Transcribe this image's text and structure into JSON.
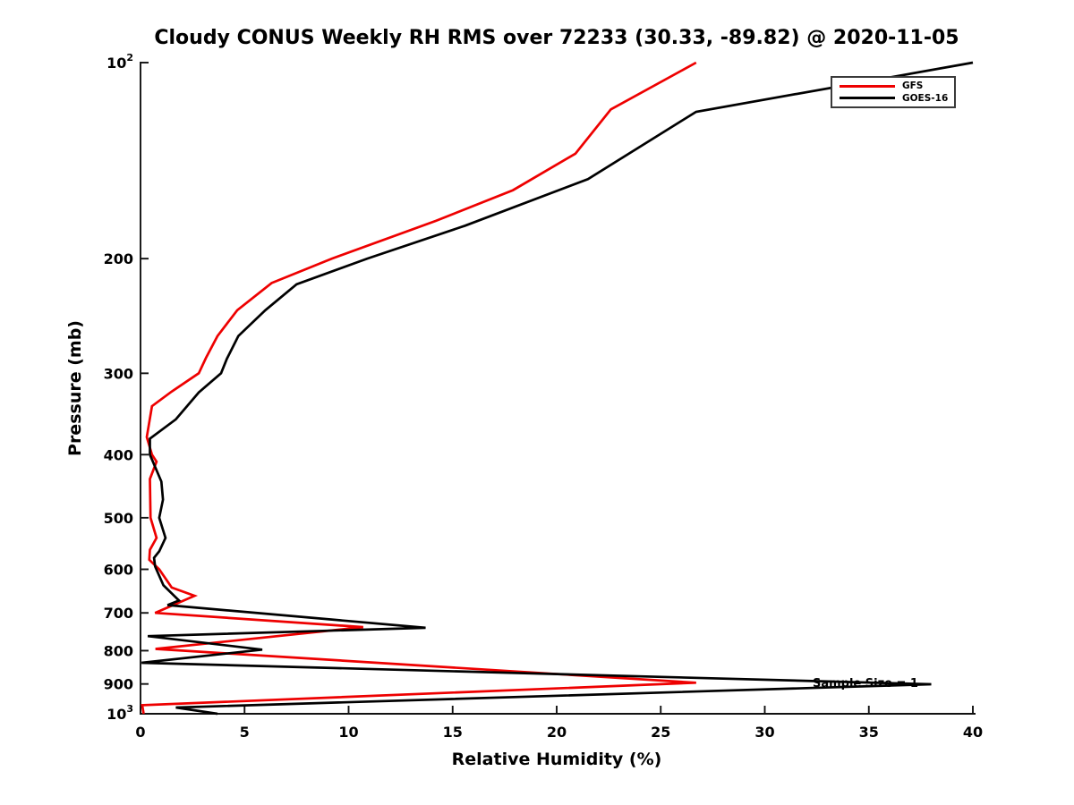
{
  "chart_data": {
    "type": "line",
    "title": "Cloudy CONUS Weekly RH RMS over 72233 (30.33, -89.82) @ 2020-11-05",
    "xlabel": "Relative Humidity (%)",
    "ylabel": "Pressure (mb)",
    "xlim": [
      0,
      40
    ],
    "pressure_lim": [
      100,
      1000
    ],
    "yscale": "log",
    "y_axis_inverted": true,
    "grid": false,
    "x_ticks": [
      0,
      5,
      10,
      15,
      20,
      25,
      30,
      35,
      40
    ],
    "y_ticks": [
      100,
      200,
      300,
      400,
      500,
      600,
      700,
      800,
      900,
      1000
    ],
    "y_tick_labels": [
      "10^2",
      "200",
      "300",
      "400",
      "500",
      "600",
      "700",
      "800",
      "900",
      "10^3"
    ],
    "legend": {
      "position": "upper right",
      "entries": [
        {
          "label": "GFS",
          "color": "#ee0000"
        },
        {
          "label": "GOES-16",
          "color": "#000000"
        }
      ]
    },
    "annotation": {
      "text": "Sample Size = 1",
      "rh": 32.3,
      "pressure": 905
    },
    "series": [
      {
        "name": "GFS",
        "color": "#ee0000",
        "points_pressure_rh": [
          [
            100,
            26.7
          ],
          [
            118,
            22.6
          ],
          [
            138,
            20.9
          ],
          [
            157,
            17.9
          ],
          [
            175,
            14.2
          ],
          [
            200,
            9.2
          ],
          [
            218,
            6.3
          ],
          [
            240,
            4.65
          ],
          [
            263,
            3.7
          ],
          [
            284,
            3.15
          ],
          [
            300,
            2.8
          ],
          [
            320,
            1.5
          ],
          [
            337,
            0.55
          ],
          [
            376,
            0.3
          ],
          [
            400,
            0.55
          ],
          [
            410,
            0.77
          ],
          [
            436,
            0.45
          ],
          [
            500,
            0.48
          ],
          [
            537,
            0.77
          ],
          [
            560,
            0.45
          ],
          [
            580,
            0.42
          ],
          [
            600,
            0.9
          ],
          [
            640,
            1.5
          ],
          [
            659,
            2.6
          ],
          [
            700,
            0.7
          ],
          [
            736,
            10.7
          ],
          [
            795,
            0.72
          ],
          [
            896,
            26.7
          ],
          [
            970,
            0.08
          ],
          [
            1000,
            0.15
          ]
        ]
      },
      {
        "name": "GOES-16",
        "color": "#000000",
        "points_pressure_rh": [
          [
            100,
            40.0
          ],
          [
            119,
            26.7
          ],
          [
            151,
            21.5
          ],
          [
            178,
            15.6
          ],
          [
            200,
            10.9
          ],
          [
            219,
            7.5
          ],
          [
            240,
            6.0
          ],
          [
            263,
            4.7
          ],
          [
            285,
            4.15
          ],
          [
            300,
            3.87
          ],
          [
            321,
            2.8
          ],
          [
            353,
            1.7
          ],
          [
            378,
            0.45
          ],
          [
            400,
            0.45
          ],
          [
            440,
            1.0
          ],
          [
            469,
            1.08
          ],
          [
            500,
            0.9
          ],
          [
            537,
            1.2
          ],
          [
            563,
            0.9
          ],
          [
            576,
            0.65
          ],
          [
            594,
            0.7
          ],
          [
            635,
            1.1
          ],
          [
            670,
            1.85
          ],
          [
            681,
            1.3
          ],
          [
            738,
            13.7
          ],
          [
            760,
            0.35
          ],
          [
            797,
            5.85
          ],
          [
            835,
            0.05
          ],
          [
            901,
            38.0
          ],
          [
            978,
            1.7
          ],
          [
            1000,
            3.7
          ]
        ]
      }
    ]
  },
  "legend": {
    "gfs_label": "GFS",
    "goes_label": "GOES-16"
  },
  "labels": {
    "title": "Cloudy CONUS Weekly RH RMS over 72233 (30.33, -89.82) @ 2020-11-05",
    "xlabel": "Relative Humidity (%)",
    "ylabel": "Pressure (mb)",
    "annotation": "Sample Size = 1"
  }
}
